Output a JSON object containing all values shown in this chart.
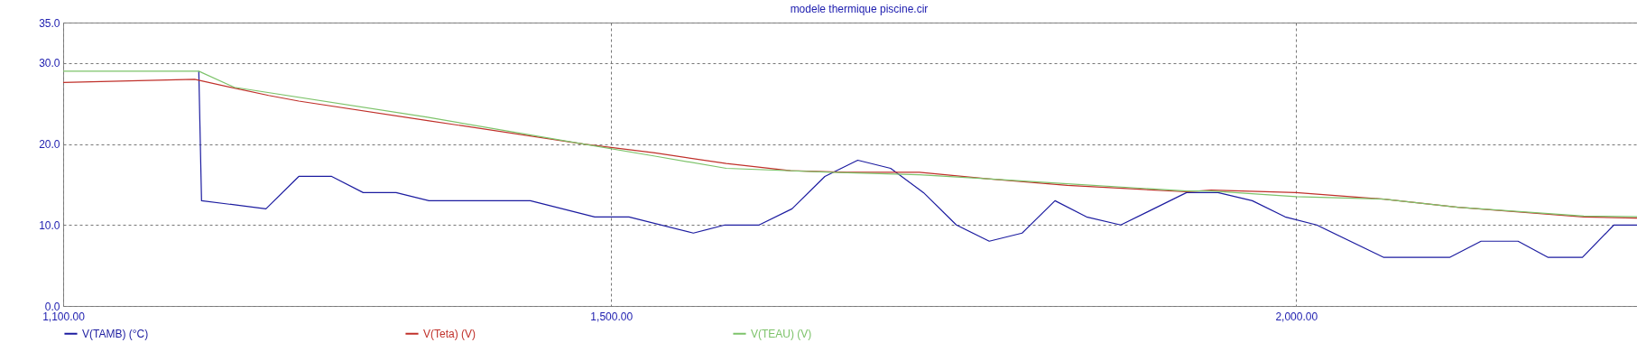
{
  "chart_data": {
    "type": "line",
    "title": "modele thermique piscine.cir",
    "xlim": [
      1100,
      2262
    ],
    "xticks": [
      {
        "value": 1100,
        "label": "1,100.00"
      },
      {
        "value": 1500,
        "label": "1,500.00"
      },
      {
        "value": 2000,
        "label": "2,000.00"
      }
    ],
    "ylim": [
      0,
      35
    ],
    "yticks": [
      {
        "value": 0,
        "label": "0.0"
      },
      {
        "value": 10,
        "label": "10.0"
      },
      {
        "value": 20,
        "label": "20.0"
      },
      {
        "value": 30,
        "label": "30.0"
      },
      {
        "value": 35,
        "label": "35.0"
      }
    ],
    "grid": true,
    "legend": "bottom",
    "line_style": "solid",
    "marker": "none",
    "series": [
      {
        "name": "V(TAMB) (°C)",
        "color": "#1c1ca0",
        "x": [
          1199,
          1201,
          1248,
          1272,
          1296,
          1319,
          1343,
          1367,
          1441,
          1488,
          1513,
          1560,
          1583,
          1608,
          1632,
          1656,
          1680,
          1704,
          1728,
          1752,
          1776,
          1800,
          1824,
          1847,
          1872,
          1920,
          1943,
          1968,
          1992,
          2015,
          2064,
          2112,
          2135,
          2162,
          2184,
          2209,
          2232,
          2256
        ],
        "values": [
          29,
          13,
          12,
          16,
          16,
          14,
          14,
          13,
          13,
          11,
          11,
          9,
          10,
          10,
          12,
          16,
          18,
          17,
          14,
          10,
          8,
          9,
          13,
          11,
          10,
          14,
          14,
          13,
          11,
          10,
          6,
          6,
          8,
          8,
          6,
          6,
          10,
          10
        ]
      },
      {
        "name": "V(Teta) (V)",
        "color": "#c0302a",
        "x": [
          1100,
          1196,
          1225,
          1250,
          1272,
          1366,
          1480,
          1532,
          1584,
          1631,
          1672,
          1725,
          1775,
          1833,
          1920,
          1938,
          2000,
          2064,
          2118,
          2210,
          2262
        ],
        "values": [
          27.6,
          28.0,
          26.9,
          26.0,
          25.3,
          22.9,
          20.0,
          18.9,
          17.6,
          16.7,
          16.5,
          16.5,
          15.7,
          14.9,
          14.1,
          14.3,
          14.0,
          13.2,
          12.2,
          11.0,
          10.8
        ]
      },
      {
        "name": "V(TEAU) (V)",
        "color": "#7dc36a",
        "x": [
          1100,
          1199,
          1225,
          1366,
          1480,
          1532,
          1584,
          1661,
          1725,
          1775,
          1833,
          1920,
          1938,
          2000,
          2064,
          2118,
          2210,
          2262
        ],
        "values": [
          29.0,
          29.0,
          27.0,
          23.3,
          20.0,
          18.5,
          17.0,
          16.5,
          16.2,
          15.7,
          15.1,
          14.2,
          14.2,
          13.5,
          13.2,
          12.2,
          11.1,
          11.0
        ]
      }
    ]
  }
}
